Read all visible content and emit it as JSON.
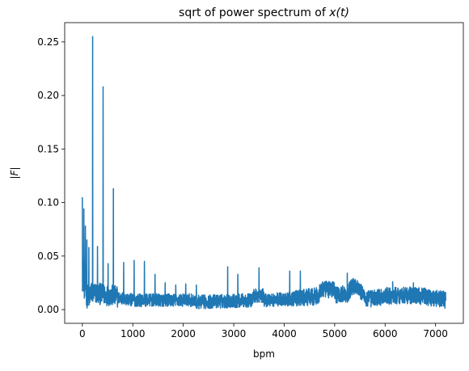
{
  "chart_data": {
    "type": "line",
    "title_prefix": "sqrt of power spectrum of ",
    "title_math": "x(t)",
    "xlabel": "bpm",
    "ylabel": "|F|",
    "xlim": [
      -350,
      7550
    ],
    "ylim": [
      -0.0128,
      0.268
    ],
    "xticks": [
      0,
      1000,
      2000,
      3000,
      4000,
      5000,
      6000,
      7000
    ],
    "xtick_labels": [
      "0",
      "1000",
      "2000",
      "3000",
      "4000",
      "5000",
      "6000",
      "7000"
    ],
    "yticks": [
      0.0,
      0.05,
      0.1,
      0.15,
      0.2,
      0.25
    ],
    "ytick_labels": [
      "0.00",
      "0.05",
      "0.10",
      "0.15",
      "0.20",
      "0.25"
    ],
    "grid": false,
    "legend": "none",
    "line_color": "#1f77b4",
    "x_range": [
      0,
      7200
    ],
    "peaks": [
      {
        "x": 0,
        "y": 0.105
      },
      {
        "x": 30,
        "y": 0.094
      },
      {
        "x": 60,
        "y": 0.078
      },
      {
        "x": 90,
        "y": 0.065
      },
      {
        "x": 130,
        "y": 0.058
      },
      {
        "x": 205,
        "y": 0.255
      },
      {
        "x": 300,
        "y": 0.059
      },
      {
        "x": 410,
        "y": 0.208
      },
      {
        "x": 510,
        "y": 0.043
      },
      {
        "x": 615,
        "y": 0.113
      },
      {
        "x": 820,
        "y": 0.044
      },
      {
        "x": 1025,
        "y": 0.046
      },
      {
        "x": 1230,
        "y": 0.045
      },
      {
        "x": 1440,
        "y": 0.033
      },
      {
        "x": 1640,
        "y": 0.025
      },
      {
        "x": 1850,
        "y": 0.023
      },
      {
        "x": 2050,
        "y": 0.024
      },
      {
        "x": 2260,
        "y": 0.023
      },
      {
        "x": 2880,
        "y": 0.04
      },
      {
        "x": 3080,
        "y": 0.033
      },
      {
        "x": 3500,
        "y": 0.039
      },
      {
        "x": 4110,
        "y": 0.036
      },
      {
        "x": 4320,
        "y": 0.036
      },
      {
        "x": 5250,
        "y": 0.034
      },
      {
        "x": 5450,
        "y": 0.027
      },
      {
        "x": 6150,
        "y": 0.026
      },
      {
        "x": 6560,
        "y": 0.025
      }
    ]
  }
}
